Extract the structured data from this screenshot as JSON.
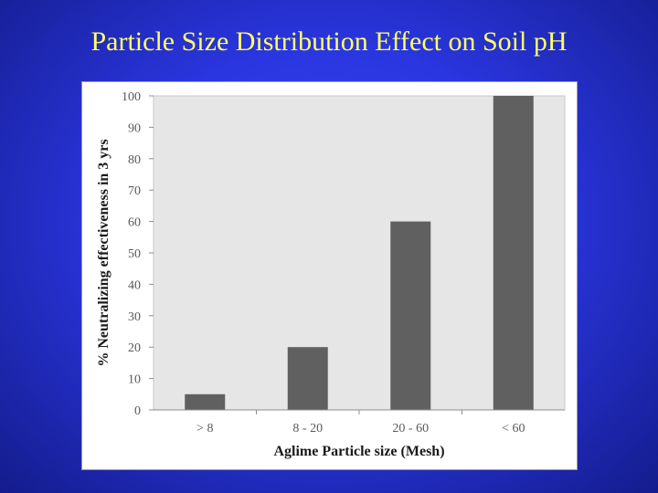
{
  "slide": {
    "title": "Particle Size Distribution Effect on Soil pH"
  },
  "colors": {
    "background": "#2a36e0",
    "title": "#ffff66",
    "plot_area": "#e6e6e6",
    "bar": "#606060"
  },
  "chart_data": {
    "type": "bar",
    "title": "",
    "xlabel": "Aglime Particle size (Mesh)",
    "ylabel": "% Neutralizing effectiveness in 3 yrs",
    "categories": [
      "> 8",
      "8 - 20",
      "20 - 60",
      "< 60"
    ],
    "values": [
      5,
      20,
      60,
      100
    ],
    "ylim": [
      0,
      100
    ],
    "yticks": [
      0,
      10,
      20,
      30,
      40,
      50,
      60,
      70,
      80,
      90,
      100
    ],
    "grid": false,
    "legend": "none"
  }
}
